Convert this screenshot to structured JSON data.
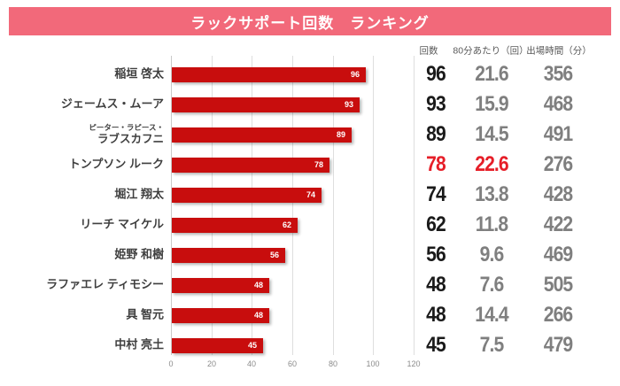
{
  "title": "ラックサポート回数　ランキング",
  "table": {
    "headers": [
      "回数",
      "80分あたり（回）",
      "出場時間（分）"
    ]
  },
  "players": [
    {
      "name": "稲垣 啓太",
      "count": 96,
      "per80": "21.6",
      "minutes": "356",
      "highlight": false
    },
    {
      "name": "ジェームス・ムーア",
      "count": 93,
      "per80": "15.9",
      "minutes": "468",
      "highlight": false
    },
    {
      "name_lines": [
        "ピーター・ラピース・",
        "ラブスカフニ"
      ],
      "count": 89,
      "per80": "14.5",
      "minutes": "491",
      "highlight": false
    },
    {
      "name": "トンプソン ルーク",
      "count": 78,
      "per80": "22.6",
      "minutes": "276",
      "highlight": true
    },
    {
      "name": "堀江 翔太",
      "count": 74,
      "per80": "13.8",
      "minutes": "428",
      "highlight": false
    },
    {
      "name": "リーチ マイケル",
      "count": 62,
      "per80": "11.8",
      "minutes": "422",
      "highlight": false
    },
    {
      "name": "姫野 和樹",
      "count": 56,
      "per80": "9.6",
      "minutes": "469",
      "highlight": false
    },
    {
      "name": "ラファエレ ティモシー",
      "count": 48,
      "per80": "7.6",
      "minutes": "505",
      "highlight": false
    },
    {
      "name": "具 智元",
      "count": 48,
      "per80": "14.4",
      "minutes": "266",
      "highlight": false
    },
    {
      "name": "中村 亮土",
      "count": 45,
      "per80": "7.5",
      "minutes": "479",
      "highlight": false
    }
  ],
  "axis": {
    "ticks": [
      0,
      20,
      40,
      60,
      80,
      100,
      120
    ],
    "max": 120
  },
  "colors": {
    "banner": "#F2697A",
    "bar": "#C80D0D",
    "highlight_text": "#E61E28",
    "count_text": "#1A1A1A",
    "secondary_text": "#7F7F7F",
    "gridline": "#DEDEDE"
  },
  "chart_data": {
    "type": "bar",
    "orientation": "horizontal",
    "title": "ラックサポート回数　ランキング",
    "categories": [
      "稲垣 啓太",
      "ジェームス・ムーア",
      "ピーター・ラピース・ラブスカフニ",
      "トンプソン ルーク",
      "堀江 翔太",
      "リーチ マイケル",
      "姫野 和樹",
      "ラファエレ ティモシー",
      "具 智元",
      "中村 亮土"
    ],
    "series": [
      {
        "name": "回数",
        "values": [
          96,
          93,
          89,
          78,
          74,
          62,
          56,
          48,
          48,
          45
        ]
      },
      {
        "name": "80分あたり（回）",
        "values": [
          21.6,
          15.9,
          14.5,
          22.6,
          13.8,
          11.8,
          9.6,
          7.6,
          14.4,
          7.5
        ]
      },
      {
        "name": "出場時間（分）",
        "values": [
          356,
          468,
          491,
          276,
          428,
          422,
          469,
          505,
          266,
          479
        ]
      }
    ],
    "xlim": [
      0,
      120
    ],
    "x_ticks": [
      0,
      20,
      40,
      60,
      80,
      100,
      120
    ],
    "grid": "vertical",
    "legend": "none",
    "bar_labels": true,
    "highlighted_category": "トンプソン ルーク"
  }
}
